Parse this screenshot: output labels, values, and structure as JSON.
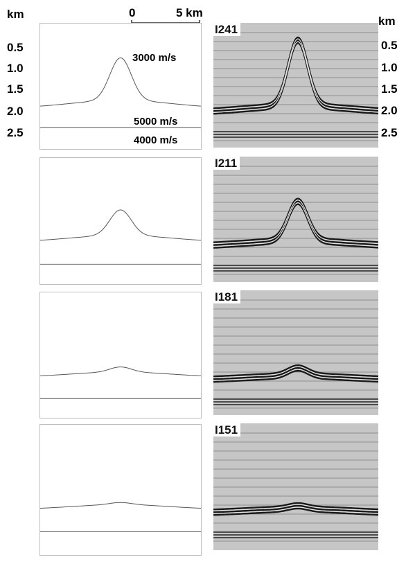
{
  "units": {
    "left": "km",
    "right": "km"
  },
  "scale": {
    "start": "0",
    "end": "5 km"
  },
  "depth_ticks_left": [
    "0.5",
    "1.0",
    "1.5",
    "2.0",
    "2.5"
  ],
  "depth_ticks_right": [
    "0.5",
    "1.0",
    "1.5",
    "2.0",
    "2.5"
  ],
  "velocities": {
    "top": "3000 m/s",
    "middle": "5000 m/s",
    "bottom": "4000 m/s"
  },
  "panels": [
    {
      "label": "I241",
      "peak": 1.0
    },
    {
      "label": "I211",
      "peak": 0.6
    },
    {
      "label": "I181",
      "peak": 0.12
    },
    {
      "label": "I151",
      "peak": 0.05
    }
  ]
}
